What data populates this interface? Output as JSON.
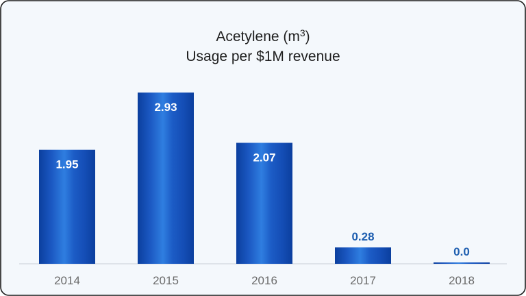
{
  "chart_data": {
    "type": "bar",
    "title_line1": "Acetylene (m",
    "title_superscript": "3",
    "title_line1_end": ")",
    "title_line2": "Usage per $1M revenue",
    "categories": [
      "2014",
      "2015",
      "2016",
      "2017",
      "2018"
    ],
    "values": [
      1.95,
      2.93,
      2.07,
      0.28,
      0.0
    ],
    "value_labels": [
      "1.95",
      "2.93",
      "2.07",
      "0.28",
      "0.0"
    ],
    "xlabel": "",
    "ylabel": "",
    "ylim": [
      0,
      3.4
    ],
    "grid": false,
    "legend": "none",
    "colors": {
      "bar_dark": "#0b3f9e",
      "bar_mid": "#1d5fc9",
      "bar_light": "#2f7ee0",
      "label_inside": "#ffffff",
      "label_outside": "#1f5fb0"
    }
  }
}
